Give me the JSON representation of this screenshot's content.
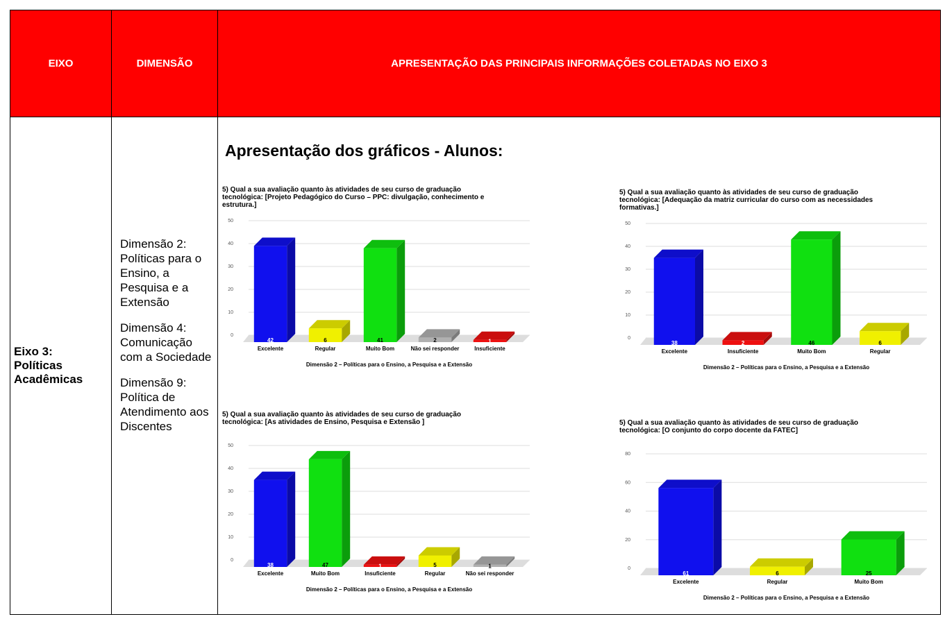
{
  "table": {
    "headers": [
      "EIXO",
      "DIMENSÃO",
      "APRESENTAÇÃO DAS PRINCIPAIS INFORMAÇÕES COLETADAS NO EIXO 3"
    ],
    "eixo": "Eixo 3: Políticas Acadêmicas",
    "dimensoes": [
      "Dimensão 2: Políticas para o Ensino, a Pesquisa e a Extensão",
      "Dimensão 4: Comunicação com a Sociedade",
      "Dimensão 9: Política de Atendimento aos Discentes"
    ],
    "section_title": "Apresentação dos gráficos - Alunos:"
  },
  "chart_data": [
    {
      "type": "bar3d",
      "title": "5) Qual a sua avaliação quanto às atividades de seu curso de graduação tecnológica: [Projeto Pedagógico do Curso – PPC: divulgação, conhecimento e estrutura.]",
      "categories": [
        "Excelente",
        "Regular",
        "Muito Bom",
        "Não sei responder",
        "Insuficiente"
      ],
      "values": [
        42,
        6,
        41,
        2,
        1
      ],
      "colors": [
        "#1010ee",
        "#f0f000",
        "#10e010",
        "#b0b0b0",
        "#ee1010"
      ],
      "ylim": [
        0,
        50
      ],
      "yticks": [
        0,
        10,
        20,
        30,
        40,
        50
      ],
      "grid": true,
      "xlabel": "Dimensão 2 – Políticas para o Ensino, a Pesquisa e a Extensão"
    },
    {
      "type": "bar3d",
      "title": "5) Qual a sua avaliação quanto às atividades de seu curso de graduação tecnológica: [Adequação da matriz curricular do curso com as necessidades formativas.]",
      "categories": [
        "Excelente",
        "Insuficiente",
        "Muito Bom",
        "Regular"
      ],
      "values": [
        38,
        2,
        46,
        6
      ],
      "colors": [
        "#1010ee",
        "#ee1010",
        "#10e010",
        "#f0f000"
      ],
      "ylim": [
        0,
        50
      ],
      "yticks": [
        0,
        10,
        20,
        30,
        40,
        50
      ],
      "grid": true,
      "xlabel": "Dimensão 2 – Políticas para o Ensino, a Pesquisa e a Extensão"
    },
    {
      "type": "bar3d",
      "title": "5) Qual a sua avaliação quanto às atividades de seu curso de graduação tecnológica: [As atividades de Ensino, Pesquisa e Extensão ]",
      "categories": [
        "Excelente",
        "Muito Bom",
        "Insuficiente",
        "Regular",
        "Não sei responder"
      ],
      "values": [
        38,
        47,
        1,
        5,
        1
      ],
      "colors": [
        "#1010ee",
        "#10e010",
        "#ee1010",
        "#f0f000",
        "#b0b0b0"
      ],
      "ylim": [
        0,
        50
      ],
      "yticks": [
        0,
        10,
        20,
        30,
        40,
        50
      ],
      "grid": true,
      "xlabel": "Dimensão 2 – Políticas para o Ensino, a Pesquisa e a Extensão"
    },
    {
      "type": "bar3d",
      "title": "5) Qual a sua avaliação quanto às atividades de seu curso de graduação tecnológica: [O conjunto do corpo docente da FATEC]",
      "categories": [
        "Excelente",
        "Regular",
        "Muito Bom"
      ],
      "values": [
        61,
        6,
        25
      ],
      "colors": [
        "#1010ee",
        "#f0f000",
        "#10e010"
      ],
      "ylim": [
        0,
        80
      ],
      "yticks": [
        0,
        20,
        40,
        60,
        80
      ],
      "grid": true,
      "xlabel": "Dimensão 2 – Políticas para o Ensino, a Pesquisa e a Extensão"
    }
  ]
}
